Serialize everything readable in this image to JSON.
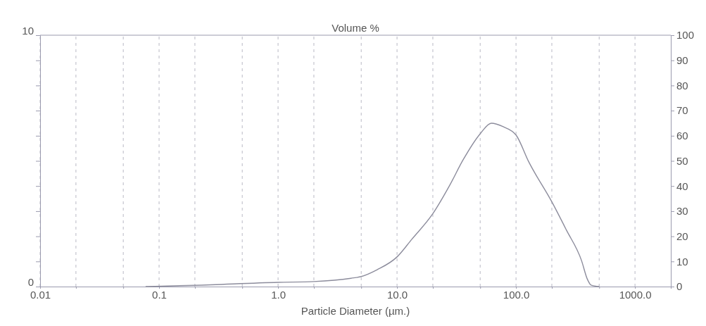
{
  "chart_data": {
    "type": "line",
    "title": "Volume %",
    "xlabel": "Particle Diameter (µm.)",
    "log": "x",
    "grid": "x",
    "marker": "none",
    "line_style": "solid",
    "xlim": [
      0.01,
      2000
    ],
    "xticks": [
      0.01,
      {
        "value": 0.02,
        "label": null
      },
      {
        "value": 0.05,
        "label": null
      },
      0.1,
      {
        "value": 0.2,
        "label": null
      },
      {
        "value": 0.5,
        "label": null
      },
      "1.0",
      {
        "value": 2,
        "label": null
      },
      {
        "value": 5,
        "label": null
      },
      "10.0",
      {
        "value": 20,
        "label": null
      },
      {
        "value": 50,
        "label": null
      },
      "100.0",
      {
        "value": 200,
        "label": null
      },
      {
        "value": 500,
        "label": null
      },
      "1000.0"
    ],
    "ylim": [
      0,
      10
    ],
    "yticks": [
      0,
      {
        "value": 1,
        "label": null
      },
      {
        "value": 2,
        "label": null
      },
      {
        "value": 3,
        "label": null
      },
      {
        "value": 4,
        "label": null
      },
      {
        "value": 5,
        "label": null
      },
      {
        "value": 6,
        "label": null
      },
      {
        "value": 7,
        "label": null
      },
      {
        "value": 8,
        "label": null
      },
      {
        "value": 9,
        "label": null
      },
      10
    ],
    "y2lim": [
      0,
      100
    ],
    "y2ticks": [
      0,
      10,
      20,
      30,
      40,
      50,
      60,
      70,
      80,
      90,
      100
    ],
    "series": [
      {
        "color": "#8c8c9c",
        "x": [
          0.077,
          0.2,
          1,
          2,
          4.1,
          5,
          6.8,
          10,
          13.3,
          20,
          27.5,
          36,
          50,
          62,
          78,
          100,
          128,
          200,
          265,
          355,
          398,
          427,
          500
        ],
        "values": [
          0,
          0.05,
          0.17,
          0.2,
          0.33,
          0.4,
          0.67,
          1.18,
          1.88,
          2.9,
          4.0,
          5.05,
          6.08,
          6.5,
          6.36,
          6.03,
          4.96,
          3.37,
          2.25,
          1.04,
          0.29,
          0.06,
          0
        ]
      }
    ]
  }
}
